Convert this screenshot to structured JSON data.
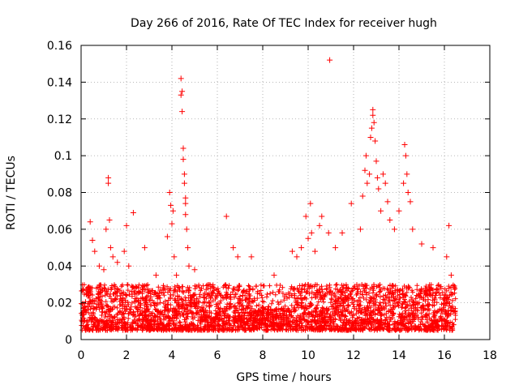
{
  "chart_data": {
    "type": "scatter",
    "title": "Day 266 of 2016, Rate Of TEC Index for receiver hugh",
    "xlabel": "GPS time / hours",
    "ylabel": "ROTI / TECUs",
    "xlim": [
      0,
      18
    ],
    "ylim": [
      0,
      0.16
    ],
    "x_ticks": [
      0,
      2,
      4,
      6,
      8,
      10,
      12,
      14,
      16,
      18
    ],
    "y_ticks": [
      0,
      0.02,
      0.04,
      0.06,
      0.08,
      0.1,
      0.12,
      0.14,
      0.16
    ],
    "x_tick_labels": [
      "0",
      "2",
      "4",
      "6",
      "8",
      "10",
      "12",
      "14",
      "16",
      "18"
    ],
    "y_tick_labels": [
      "0",
      "0.02",
      "0.04",
      "0.06",
      "0.08",
      "0.1",
      "0.12",
      "0.14",
      "0.16"
    ],
    "grid": true,
    "marker": "+",
    "series": [
      {
        "name": "ROTI",
        "color": "#ff0000",
        "background_band": {
          "x_range": [
            0,
            16.5
          ],
          "y_range": [
            0.005,
            0.03
          ]
        },
        "points": [
          [
            0.3,
            0.028
          ],
          [
            0.4,
            0.064
          ],
          [
            0.5,
            0.054
          ],
          [
            0.6,
            0.048
          ],
          [
            0.8,
            0.04
          ],
          [
            1.0,
            0.038
          ],
          [
            1.1,
            0.06
          ],
          [
            1.2,
            0.085
          ],
          [
            1.2,
            0.088
          ],
          [
            1.25,
            0.065
          ],
          [
            1.3,
            0.05
          ],
          [
            1.4,
            0.045
          ],
          [
            1.6,
            0.042
          ],
          [
            1.9,
            0.048
          ],
          [
            2.0,
            0.062
          ],
          [
            2.1,
            0.04
          ],
          [
            2.3,
            0.069
          ],
          [
            2.8,
            0.05
          ],
          [
            3.3,
            0.035
          ],
          [
            3.8,
            0.056
          ],
          [
            3.9,
            0.08
          ],
          [
            3.95,
            0.073
          ],
          [
            4.0,
            0.063
          ],
          [
            4.05,
            0.07
          ],
          [
            4.1,
            0.045
          ],
          [
            4.2,
            0.035
          ],
          [
            4.4,
            0.142
          ],
          [
            4.4,
            0.133
          ],
          [
            4.45,
            0.124
          ],
          [
            4.45,
            0.135
          ],
          [
            4.5,
            0.104
          ],
          [
            4.5,
            0.098
          ],
          [
            4.55,
            0.09
          ],
          [
            4.55,
            0.085
          ],
          [
            4.6,
            0.077
          ],
          [
            4.6,
            0.074
          ],
          [
            4.6,
            0.068
          ],
          [
            4.65,
            0.06
          ],
          [
            4.7,
            0.05
          ],
          [
            4.75,
            0.04
          ],
          [
            5.0,
            0.038
          ],
          [
            6.4,
            0.067
          ],
          [
            6.7,
            0.05
          ],
          [
            6.9,
            0.045
          ],
          [
            7.5,
            0.045
          ],
          [
            8.5,
            0.035
          ],
          [
            9.3,
            0.048
          ],
          [
            9.5,
            0.045
          ],
          [
            9.7,
            0.05
          ],
          [
            9.9,
            0.067
          ],
          [
            10.0,
            0.055
          ],
          [
            10.1,
            0.074
          ],
          [
            10.15,
            0.058
          ],
          [
            10.3,
            0.048
          ],
          [
            10.5,
            0.062
          ],
          [
            10.6,
            0.067
          ],
          [
            10.9,
            0.058
          ],
          [
            10.95,
            0.152
          ],
          [
            11.2,
            0.05
          ],
          [
            11.5,
            0.058
          ],
          [
            11.9,
            0.074
          ],
          [
            12.3,
            0.06
          ],
          [
            12.4,
            0.078
          ],
          [
            12.5,
            0.092
          ],
          [
            12.55,
            0.1
          ],
          [
            12.6,
            0.085
          ],
          [
            12.7,
            0.09
          ],
          [
            12.75,
            0.11
          ],
          [
            12.8,
            0.115
          ],
          [
            12.85,
            0.125
          ],
          [
            12.85,
            0.122
          ],
          [
            12.9,
            0.118
          ],
          [
            12.95,
            0.108
          ],
          [
            13.0,
            0.097
          ],
          [
            13.05,
            0.088
          ],
          [
            13.1,
            0.082
          ],
          [
            13.2,
            0.07
          ],
          [
            13.3,
            0.09
          ],
          [
            13.4,
            0.085
          ],
          [
            13.5,
            0.075
          ],
          [
            13.6,
            0.065
          ],
          [
            13.8,
            0.06
          ],
          [
            14.0,
            0.07
          ],
          [
            14.2,
            0.085
          ],
          [
            14.25,
            0.106
          ],
          [
            14.3,
            0.1
          ],
          [
            14.35,
            0.09
          ],
          [
            14.4,
            0.08
          ],
          [
            14.5,
            0.075
          ],
          [
            14.6,
            0.06
          ],
          [
            15.0,
            0.052
          ],
          [
            15.5,
            0.05
          ],
          [
            16.1,
            0.045
          ],
          [
            16.2,
            0.062
          ],
          [
            16.3,
            0.035
          ]
        ]
      }
    ]
  }
}
